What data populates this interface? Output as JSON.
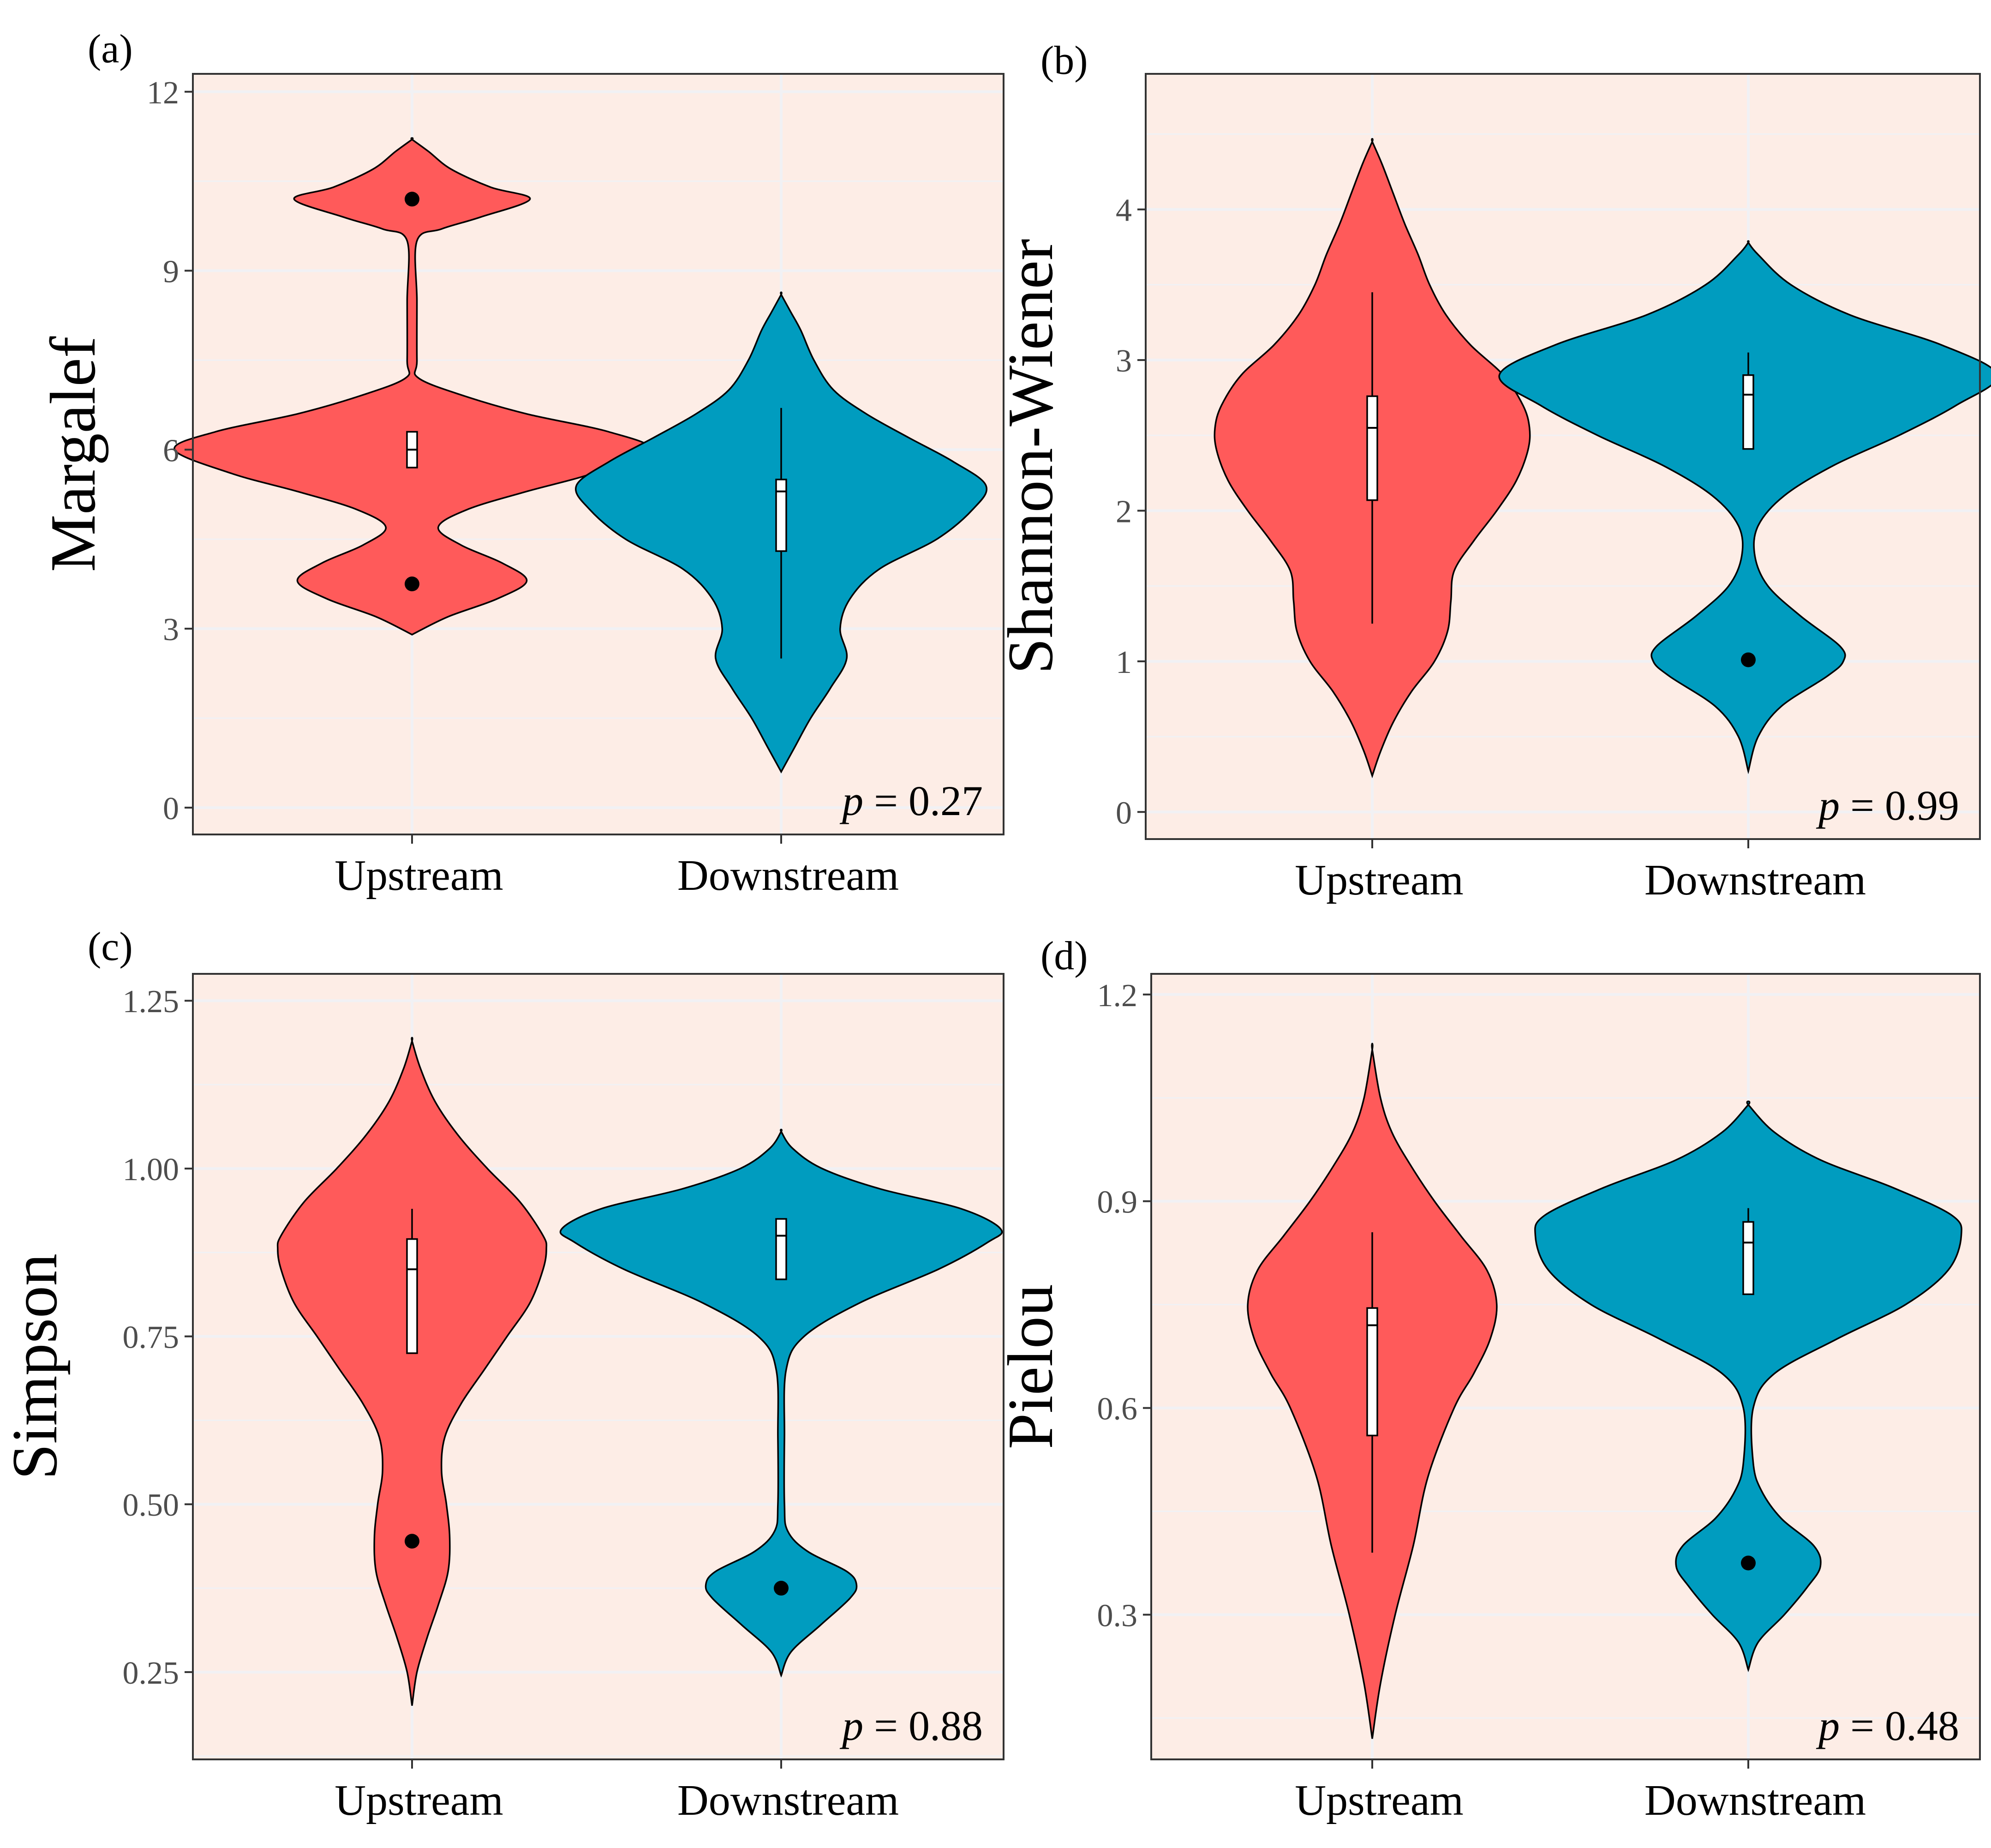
{
  "colors": {
    "upstream": "#FF5A5A",
    "downstream": "#009CBF",
    "panel_bg": "#FDEDE6",
    "grid": "#F1F1F4"
  },
  "categories": [
    "Upstream",
    "Downstream"
  ],
  "chart_data": [
    {
      "type": "violin",
      "tag": "(a)",
      "ylabel": "Margalef",
      "ylim": [
        -0.45,
        12.3
      ],
      "ticks": [
        0,
        3,
        6,
        9,
        12
      ],
      "tick_labels": [
        "0",
        "3",
        "6",
        "9",
        "12"
      ],
      "p_label": "p",
      "p_value": "= 0.27",
      "series": [
        {
          "name": "Upstream",
          "shape": [
            [
              2.9,
              0.0
            ],
            [
              3.2,
              0.22
            ],
            [
              3.5,
              0.52
            ],
            [
              3.8,
              0.7
            ],
            [
              4.1,
              0.55
            ],
            [
              4.4,
              0.3
            ],
            [
              4.7,
              0.16
            ],
            [
              5.0,
              0.34
            ],
            [
              5.3,
              0.7
            ],
            [
              5.6,
              1.1
            ],
            [
              6.0,
              1.45
            ],
            [
              6.3,
              1.2
            ],
            [
              6.6,
              0.7
            ],
            [
              6.9,
              0.32
            ],
            [
              7.2,
              0.04
            ],
            [
              7.5,
              0.03
            ],
            [
              8.5,
              0.03
            ],
            [
              9.5,
              0.03
            ],
            [
              9.7,
              0.18
            ],
            [
              9.9,
              0.42
            ],
            [
              10.2,
              0.72
            ],
            [
              10.4,
              0.48
            ],
            [
              10.7,
              0.24
            ],
            [
              11.0,
              0.1
            ],
            [
              11.2,
              0.0
            ]
          ],
          "box": {
            "q1": 5.7,
            "median": 6.0,
            "q3": 6.3,
            "lo": 5.7,
            "hi": 6.3
          },
          "outliers": [
            10.2,
            3.75
          ]
        },
        {
          "name": "Downstream",
          "shape": [
            [
              0.6,
              0.0
            ],
            [
              1.0,
              0.08
            ],
            [
              1.5,
              0.18
            ],
            [
              2.0,
              0.3
            ],
            [
              2.5,
              0.4
            ],
            [
              3.0,
              0.36
            ],
            [
              3.5,
              0.42
            ],
            [
              4.0,
              0.6
            ],
            [
              4.5,
              0.95
            ],
            [
              5.0,
              1.17
            ],
            [
              5.4,
              1.25
            ],
            [
              5.8,
              1.05
            ],
            [
              6.2,
              0.78
            ],
            [
              6.6,
              0.52
            ],
            [
              7.0,
              0.32
            ],
            [
              7.5,
              0.2
            ],
            [
              8.0,
              0.12
            ],
            [
              8.3,
              0.06
            ],
            [
              8.6,
              0.0
            ]
          ],
          "box": {
            "q1": 4.3,
            "median": 5.3,
            "q3": 5.5,
            "lo": 2.5,
            "hi": 6.7
          },
          "outliers": []
        }
      ]
    },
    {
      "type": "violin",
      "tag": "(b)",
      "ylabel": "Shannon-Wiener",
      "ylim": [
        -0.18,
        4.9
      ],
      "ticks": [
        0,
        1,
        2,
        3,
        4
      ],
      "tick_labels": [
        "0",
        "1",
        "2",
        "3",
        "4"
      ],
      "p_label": "p",
      "p_value": "= 0.99",
      "series": [
        {
          "name": "Upstream",
          "shape": [
            [
              0.24,
              0.0
            ],
            [
              0.4,
              0.05
            ],
            [
              0.6,
              0.13
            ],
            [
              0.8,
              0.24
            ],
            [
              1.0,
              0.38
            ],
            [
              1.2,
              0.46
            ],
            [
              1.4,
              0.48
            ],
            [
              1.6,
              0.5
            ],
            [
              1.8,
              0.62
            ],
            [
              2.0,
              0.76
            ],
            [
              2.2,
              0.88
            ],
            [
              2.4,
              0.95
            ],
            [
              2.55,
              0.96
            ],
            [
              2.7,
              0.92
            ],
            [
              2.9,
              0.8
            ],
            [
              3.1,
              0.6
            ],
            [
              3.3,
              0.45
            ],
            [
              3.5,
              0.35
            ],
            [
              3.7,
              0.28
            ],
            [
              3.9,
              0.2
            ],
            [
              4.1,
              0.13
            ],
            [
              4.3,
              0.06
            ],
            [
              4.45,
              0.0
            ]
          ],
          "box": {
            "q1": 2.07,
            "median": 2.55,
            "q3": 2.76,
            "lo": 1.25,
            "hi": 3.45
          },
          "outliers": []
        },
        {
          "name": "Downstream",
          "shape": [
            [
              0.27,
              0.0
            ],
            [
              0.5,
              0.06
            ],
            [
              0.7,
              0.2
            ],
            [
              0.9,
              0.48
            ],
            [
              1.0,
              0.58
            ],
            [
              1.1,
              0.56
            ],
            [
              1.3,
              0.32
            ],
            [
              1.5,
              0.12
            ],
            [
              1.7,
              0.04
            ],
            [
              1.9,
              0.06
            ],
            [
              2.1,
              0.22
            ],
            [
              2.3,
              0.52
            ],
            [
              2.5,
              0.92
            ],
            [
              2.7,
              1.27
            ],
            [
              2.9,
              1.52
            ],
            [
              3.1,
              1.18
            ],
            [
              3.3,
              0.62
            ],
            [
              3.5,
              0.26
            ],
            [
              3.7,
              0.06
            ],
            [
              3.78,
              0.0
            ]
          ],
          "box": {
            "q1": 2.41,
            "median": 2.77,
            "q3": 2.9,
            "lo": 2.41,
            "hi": 3.05
          },
          "outliers": [
            1.01
          ]
        }
      ]
    },
    {
      "type": "violin",
      "tag": "(c)",
      "ylabel": "Simpson",
      "ylim": [
        0.12,
        1.29
      ],
      "ticks": [
        0.25,
        0.5,
        0.75,
        1.0,
        1.25
      ],
      "tick_labels": [
        "0.25",
        "0.50",
        "0.75",
        "1.00",
        "1.25"
      ],
      "p_label": "p",
      "p_value": "= 0.88",
      "series": [
        {
          "name": "Upstream",
          "shape": [
            [
              0.2,
              0.0
            ],
            [
              0.25,
              0.03
            ],
            [
              0.3,
              0.09
            ],
            [
              0.35,
              0.16
            ],
            [
              0.4,
              0.22
            ],
            [
              0.45,
              0.23
            ],
            [
              0.5,
              0.21
            ],
            [
              0.55,
              0.18
            ],
            [
              0.6,
              0.2
            ],
            [
              0.65,
              0.3
            ],
            [
              0.7,
              0.44
            ],
            [
              0.75,
              0.58
            ],
            [
              0.8,
              0.72
            ],
            [
              0.85,
              0.8
            ],
            [
              0.88,
              0.82
            ],
            [
              0.9,
              0.8
            ],
            [
              0.95,
              0.66
            ],
            [
              1.0,
              0.46
            ],
            [
              1.05,
              0.28
            ],
            [
              1.1,
              0.14
            ],
            [
              1.15,
              0.05
            ],
            [
              1.19,
              0.0
            ]
          ],
          "box": {
            "q1": 0.725,
            "median": 0.85,
            "q3": 0.895,
            "lo": 0.725,
            "hi": 0.94
          },
          "outliers": [
            0.445
          ]
        },
        {
          "name": "Downstream",
          "shape": [
            [
              0.245,
              0.0
            ],
            [
              0.28,
              0.06
            ],
            [
              0.32,
              0.24
            ],
            [
              0.36,
              0.42
            ],
            [
              0.38,
              0.46
            ],
            [
              0.4,
              0.4
            ],
            [
              0.43,
              0.16
            ],
            [
              0.46,
              0.04
            ],
            [
              0.5,
              0.02
            ],
            [
              0.6,
              0.02
            ],
            [
              0.7,
              0.03
            ],
            [
              0.75,
              0.14
            ],
            [
              0.8,
              0.48
            ],
            [
              0.85,
              0.96
            ],
            [
              0.89,
              1.26
            ],
            [
              0.91,
              1.34
            ],
            [
              0.94,
              1.1
            ],
            [
              0.97,
              0.6
            ],
            [
              1.0,
              0.25
            ],
            [
              1.03,
              0.07
            ],
            [
              1.055,
              0.0
            ]
          ],
          "box": {
            "q1": 0.835,
            "median": 0.9,
            "q3": 0.925,
            "lo": 0.835,
            "hi": 0.925
          },
          "outliers": [
            0.375
          ]
        }
      ]
    },
    {
      "type": "violin",
      "tag": "(d)",
      "ylabel": "Pielou",
      "ylim": [
        0.09,
        1.23
      ],
      "ticks": [
        0.3,
        0.6,
        0.9,
        1.2
      ],
      "tick_labels": [
        "0.3",
        "0.6",
        "0.9",
        "1.2"
      ],
      "p_label": "p",
      "p_value": "= 0.48",
      "series": [
        {
          "name": "Upstream",
          "shape": [
            [
              0.12,
              0.0
            ],
            [
              0.2,
              0.05
            ],
            [
              0.3,
              0.14
            ],
            [
              0.4,
              0.25
            ],
            [
              0.5,
              0.34
            ],
            [
              0.6,
              0.5
            ],
            [
              0.65,
              0.62
            ],
            [
              0.7,
              0.72
            ],
            [
              0.75,
              0.76
            ],
            [
              0.8,
              0.7
            ],
            [
              0.85,
              0.54
            ],
            [
              0.9,
              0.38
            ],
            [
              0.95,
              0.24
            ],
            [
              1.0,
              0.12
            ],
            [
              1.05,
              0.05
            ],
            [
              1.12,
              0.0
            ]
          ],
          "box": {
            "q1": 0.56,
            "median": 0.72,
            "q3": 0.745,
            "lo": 0.39,
            "hi": 0.855
          },
          "outliers": []
        },
        {
          "name": "Downstream",
          "shape": [
            [
              0.22,
              0.0
            ],
            [
              0.26,
              0.06
            ],
            [
              0.3,
              0.22
            ],
            [
              0.34,
              0.36
            ],
            [
              0.37,
              0.44
            ],
            [
              0.4,
              0.4
            ],
            [
              0.44,
              0.2
            ],
            [
              0.48,
              0.08
            ],
            [
              0.52,
              0.03
            ],
            [
              0.6,
              0.03
            ],
            [
              0.65,
              0.16
            ],
            [
              0.7,
              0.54
            ],
            [
              0.75,
              0.96
            ],
            [
              0.8,
              1.22
            ],
            [
              0.85,
              1.3
            ],
            [
              0.88,
              1.24
            ],
            [
              0.92,
              0.88
            ],
            [
              0.96,
              0.44
            ],
            [
              1.0,
              0.16
            ],
            [
              1.04,
              0.0
            ]
          ],
          "box": {
            "q1": 0.765,
            "median": 0.84,
            "q3": 0.87,
            "lo": 0.765,
            "hi": 0.89
          },
          "outliers": [
            0.375
          ]
        }
      ]
    }
  ]
}
